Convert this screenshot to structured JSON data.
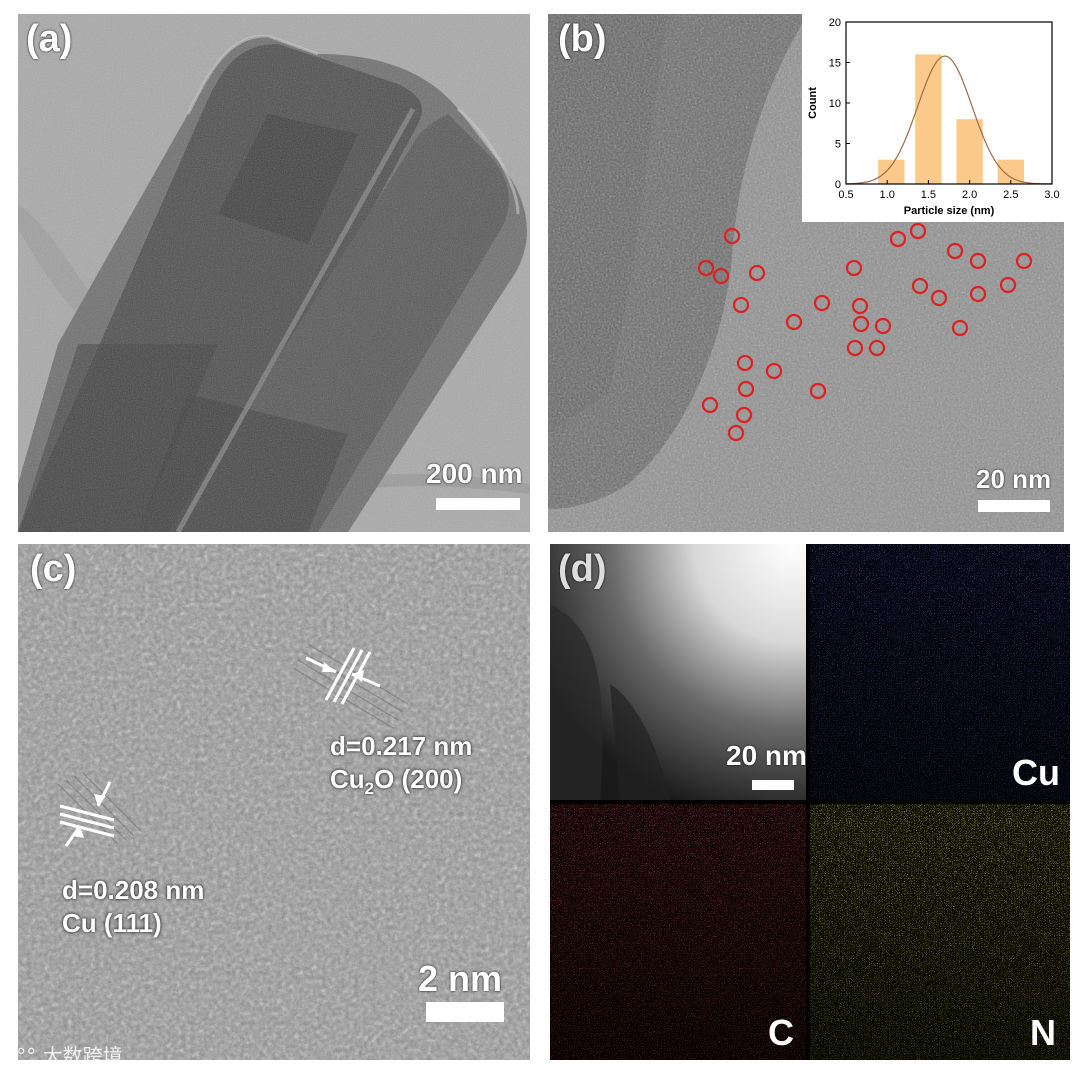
{
  "panels": {
    "a": {
      "label": "(a)",
      "scale_bar": "200 nm"
    },
    "b": {
      "label": "(b)",
      "scale_bar": "20 nm"
    },
    "c": {
      "label": "(c)",
      "scale_bar": "2 nm",
      "annotation_1": {
        "d": "d=0.217 nm",
        "phase_pre": "Cu",
        "phase_sub": "2",
        "phase_post": "O (200)"
      },
      "annotation_2": {
        "d": "d=0.208 nm",
        "phase": "Cu (111)"
      }
    },
    "d": {
      "label": "(d)",
      "scale_bar": "20 nm",
      "maps": [
        "Cu",
        "C",
        "N"
      ]
    }
  },
  "watermark": "大数跨境",
  "colors": {
    "cu_map": "#2a3fd0",
    "c_map": "#d42020",
    "n_map": "#d8d020",
    "circle": "#e02020",
    "bar_fill": "#fbc98a",
    "fit_line": "#a06a44"
  },
  "chart_data": {
    "type": "bar",
    "x": [
      1.05,
      1.5,
      2.0,
      2.5
    ],
    "values": [
      3,
      16,
      8,
      3
    ],
    "fit": "gaussian",
    "xlabel": "Particle size (nm)",
    "ylabel": "Count",
    "xlim": [
      0.5,
      3.0
    ],
    "ylim": [
      0,
      20
    ],
    "xticks": [
      "0.5",
      "1.0",
      "1.5",
      "2.0",
      "2.5",
      "3.0"
    ],
    "yticks": [
      "0",
      "5",
      "10",
      "15",
      "20"
    ]
  }
}
